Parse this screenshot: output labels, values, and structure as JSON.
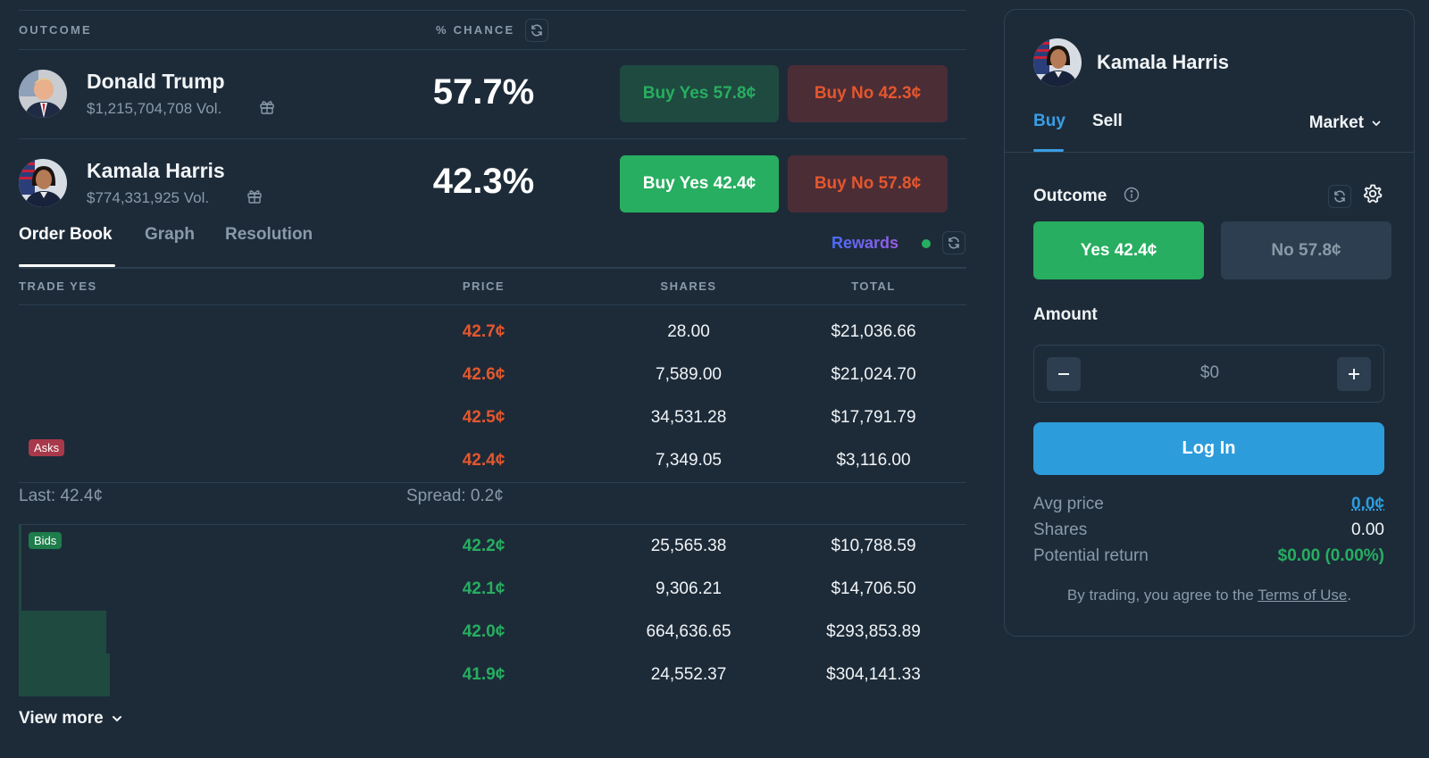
{
  "colors": {
    "background": "#1d2b39",
    "yes_green": "#27ae60",
    "no_red": "#e4572e",
    "accent_blue": "#2d9cdb",
    "muted": "#8a9aa8"
  },
  "outcomes_header": {
    "outcome": "OUTCOME",
    "chance": "% CHANCE"
  },
  "markets": [
    {
      "name": "Donald Trump",
      "volume": "$1,215,704,708 Vol.",
      "chance": "57.7%",
      "buy_yes": "Buy Yes 57.8¢",
      "buy_no": "Buy No 42.3¢",
      "selected": false
    },
    {
      "name": "Kamala Harris",
      "volume": "$774,331,925 Vol.",
      "chance": "42.3%",
      "buy_yes": "Buy Yes 42.4¢",
      "buy_no": "Buy No 57.8¢",
      "selected": true
    }
  ],
  "tabs": [
    "Order Book",
    "Graph",
    "Resolution"
  ],
  "active_tab": "Order Book",
  "rewards_label": "Rewards",
  "order_book": {
    "headers": {
      "side": "TRADE YES",
      "price": "PRICE",
      "shares": "SHARES",
      "total": "TOTAL"
    },
    "asks": [
      {
        "price": "42.7¢",
        "shares": "28.00",
        "total": "$21,036.66"
      },
      {
        "price": "42.6¢",
        "shares": "7,589.00",
        "total": "$21,024.70"
      },
      {
        "price": "42.5¢",
        "shares": "34,531.28",
        "total": "$17,791.79"
      },
      {
        "price": "42.4¢",
        "shares": "7,349.05",
        "total": "$3,116.00"
      }
    ],
    "asks_label": "Asks",
    "last": "Last: 42.4¢",
    "spread": "Spread: 0.2¢",
    "bids_label": "Bids",
    "bids": [
      {
        "price": "42.2¢",
        "shares": "25,565.38",
        "total": "$10,788.59"
      },
      {
        "price": "42.1¢",
        "shares": "9,306.21",
        "total": "$14,706.50"
      },
      {
        "price": "42.0¢",
        "shares": "664,636.65",
        "total": "$293,853.89"
      },
      {
        "price": "41.9¢",
        "shares": "24,552.37",
        "total": "$304,141.33"
      }
    ],
    "view_more": "View more"
  },
  "panel": {
    "name": "Kamala Harris",
    "tab_buy": "Buy",
    "tab_sell": "Sell",
    "order_type": "Market",
    "outcome_label": "Outcome",
    "yes_option": "Yes 42.4¢",
    "no_option": "No 57.8¢",
    "amount_label": "Amount",
    "amount_value": "$0",
    "login": "Log In",
    "avg_price_label": "Avg price",
    "avg_price_value": "0.0¢",
    "shares_label": "Shares",
    "shares_value": "0.00",
    "potential_return_label": "Potential return",
    "potential_return_value": "$0.00 (0.00%)",
    "disclaimer": "By trading, you agree to the",
    "terms": "Terms of Use",
    "period": "."
  }
}
